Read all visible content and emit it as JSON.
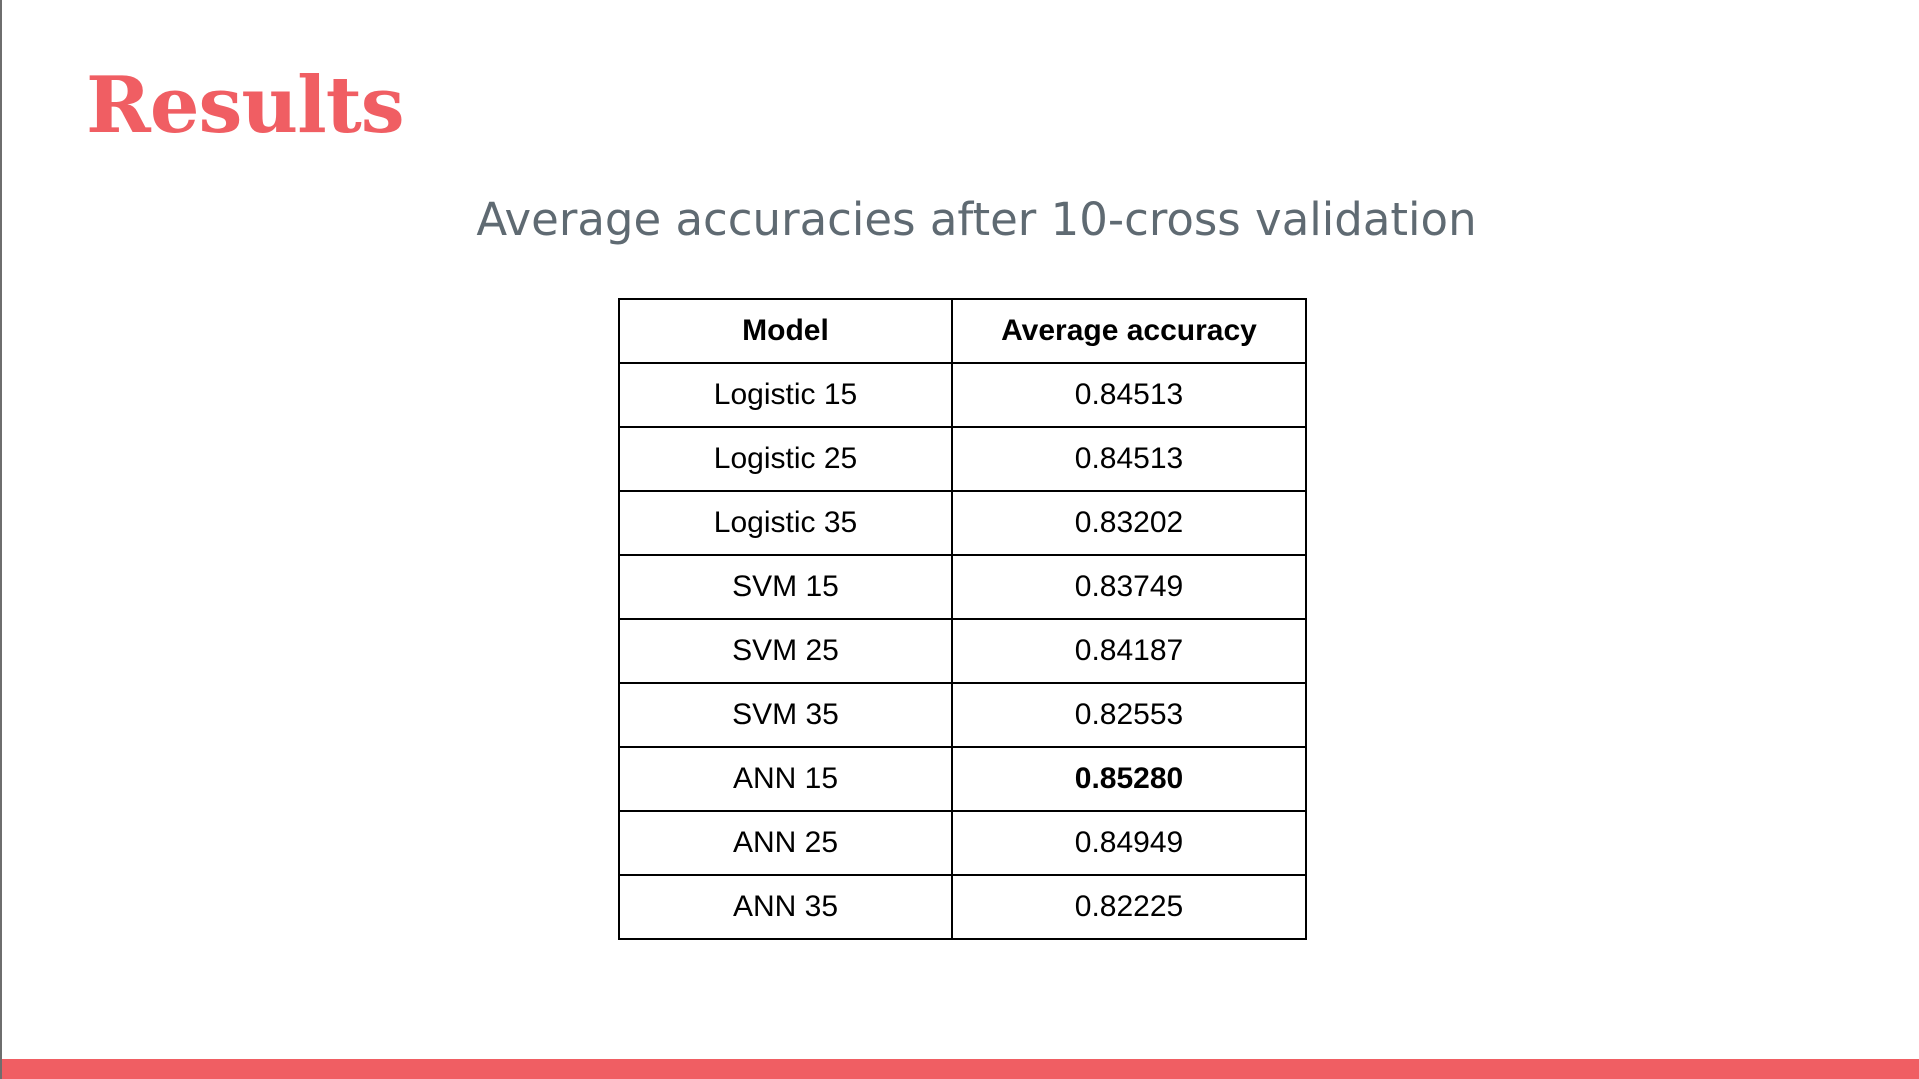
{
  "slide": {
    "title": "Results",
    "subtitle": "Average accuracies after 10-cross validation",
    "accent_color": "#f05e63"
  },
  "table": {
    "headers": [
      "Model",
      "Average accuracy"
    ],
    "rows": [
      {
        "model": "Logistic 15",
        "accuracy": "0.84513"
      },
      {
        "model": "Logistic 25",
        "accuracy": "0.84513"
      },
      {
        "model": "Logistic 35",
        "accuracy": "0.83202"
      },
      {
        "model": "SVM 15",
        "accuracy": "0.83749"
      },
      {
        "model": "SVM 25",
        "accuracy": "0.84187"
      },
      {
        "model": "SVM 35",
        "accuracy": "0.82553"
      },
      {
        "model": "ANN 15",
        "accuracy": "0.85280"
      },
      {
        "model": "ANN 25",
        "accuracy": "0.84949"
      },
      {
        "model": "ANN 35",
        "accuracy": "0.82225"
      }
    ],
    "highlighted_row_index": 6
  }
}
